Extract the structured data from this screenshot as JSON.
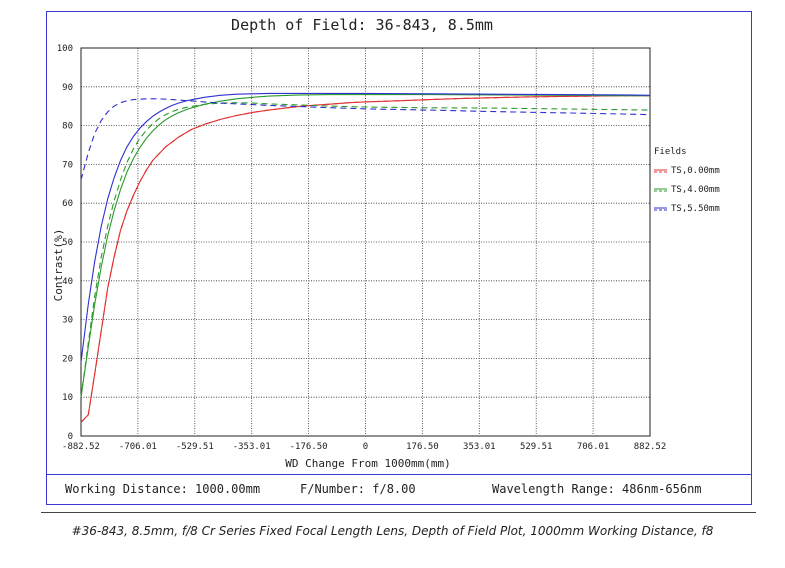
{
  "chart_data": {
    "type": "line",
    "title": "Depth of Field: 36-843, 8.5mm",
    "xlabel": "WD Change From 1000mm(mm)",
    "ylabel": "Contrast(%)",
    "xlim": [
      -882.52,
      882.52
    ],
    "ylim": [
      0,
      100
    ],
    "x_ticks": [
      "-882.52",
      "-706.01",
      "-529.51",
      "-353.01",
      "-176.50",
      "0",
      "176.50",
      "353.01",
      "529.51",
      "706.01",
      "882.52"
    ],
    "y_ticks": [
      "0",
      "10",
      "20",
      "30",
      "40",
      "50",
      "60",
      "70",
      "80",
      "90",
      "100"
    ],
    "grid": true,
    "legend_title": "Fields",
    "legend_position": "right",
    "series": [
      {
        "name": "TS,0.00mm",
        "color": "#e03030",
        "dash": "solid",
        "x": [
          -882.52,
          -860,
          -840,
          -820,
          -800,
          -780,
          -760,
          -740,
          -720,
          -700,
          -680,
          -660,
          -620,
          -580,
          -540,
          -500,
          -450,
          -400,
          -350,
          -300,
          -250,
          -200,
          -150,
          -100,
          -50,
          0,
          100,
          200,
          300,
          400,
          500,
          600,
          700,
          800,
          882.52
        ],
        "y": [
          3.5,
          5.5,
          16,
          27,
          38,
          46,
          53,
          58,
          62,
          65.5,
          68.5,
          71,
          74.5,
          77,
          79,
          80.3,
          81.6,
          82.6,
          83.4,
          84,
          84.5,
          85,
          85.3,
          85.6,
          85.9,
          86.1,
          86.4,
          86.7,
          87,
          87.2,
          87.4,
          87.5,
          87.6,
          87.7,
          87.7
        ]
      },
      {
        "name": "TS,0.00mm",
        "color": "#e03030",
        "dash": "dashed",
        "x": [
          -882.52,
          -860,
          -840,
          -820,
          -800,
          -780,
          -760,
          -740,
          -720,
          -700,
          -680,
          -660,
          -620,
          -580,
          -540,
          -500,
          -450,
          -400,
          -350,
          -300,
          -250,
          -200,
          -150,
          -100,
          -50,
          0,
          100,
          200,
          300,
          400,
          500,
          600,
          700,
          800,
          882.52
        ],
        "y": [
          3.5,
          5.5,
          16,
          27,
          38,
          46,
          53,
          58,
          62,
          65.5,
          68.5,
          71,
          74.5,
          77,
          79,
          80.3,
          81.6,
          82.6,
          83.4,
          84,
          84.5,
          85,
          85.3,
          85.6,
          85.9,
          86.1,
          86.4,
          86.7,
          87,
          87.2,
          87.4,
          87.5,
          87.6,
          87.7,
          87.7
        ]
      },
      {
        "name": "TS,4.00mm",
        "color": "#2a9a2a",
        "dash": "solid",
        "x": [
          -882.52,
          -860,
          -840,
          -820,
          -800,
          -780,
          -760,
          -740,
          -720,
          -700,
          -680,
          -660,
          -640,
          -620,
          -600,
          -580,
          -550,
          -500,
          -450,
          -400,
          -350,
          -300,
          -200,
          -100,
          0,
          200,
          400,
          600,
          800,
          882.52
        ],
        "y": [
          10,
          23,
          34,
          43.5,
          51.5,
          58,
          63.5,
          68,
          71.5,
          74.3,
          76.7,
          78.6,
          80.2,
          81.5,
          82.5,
          83.3,
          84.3,
          85.5,
          86.3,
          86.9,
          87.3,
          87.6,
          87.9,
          88,
          88,
          88,
          87.9,
          87.8,
          87.7,
          87.7
        ]
      },
      {
        "name": "TS,4.00mm",
        "color": "#2a9a2a",
        "dash": "dashed",
        "x": [
          -882.52,
          -860,
          -840,
          -820,
          -800,
          -780,
          -760,
          -740,
          -720,
          -700,
          -680,
          -660,
          -640,
          -620,
          -600,
          -580,
          -550,
          -500,
          -450,
          -400,
          -350,
          -300,
          -200,
          -100,
          0,
          200,
          400,
          600,
          800,
          882.52
        ],
        "y": [
          10,
          24,
          36,
          46,
          54,
          60.5,
          66,
          70.5,
          74,
          76.7,
          78.8,
          80.5,
          81.8,
          82.8,
          83.6,
          84.2,
          84.8,
          85.5,
          85.8,
          85.9,
          85.8,
          85.6,
          85.3,
          85,
          84.8,
          84.6,
          84.5,
          84.3,
          84.1,
          84
        ]
      },
      {
        "name": "TS,5.50mm",
        "color": "#3030d0",
        "dash": "solid",
        "x": [
          -882.52,
          -860,
          -840,
          -820,
          -800,
          -780,
          -760,
          -740,
          -720,
          -700,
          -680,
          -660,
          -640,
          -620,
          -600,
          -580,
          -550,
          -500,
          -450,
          -400,
          -350,
          -300,
          -200,
          -100,
          0,
          200,
          400,
          600,
          800,
          882.52
        ],
        "y": [
          19,
          34,
          45,
          54,
          61,
          66.5,
          71,
          74.5,
          77.2,
          79.3,
          81,
          82.4,
          83.5,
          84.4,
          85.2,
          85.8,
          86.5,
          87.3,
          87.8,
          88.1,
          88.2,
          88.3,
          88.3,
          88.3,
          88.3,
          88.2,
          88.1,
          88,
          87.9,
          87.8
        ]
      },
      {
        "name": "TS,5.50mm",
        "color": "#3030d0",
        "dash": "dashed",
        "x": [
          -882.52,
          -860,
          -840,
          -820,
          -800,
          -780,
          -760,
          -740,
          -720,
          -700,
          -680,
          -660,
          -640,
          -620,
          -600,
          -580,
          -550,
          -500,
          -450,
          -400,
          -350,
          -300,
          -200,
          -100,
          0,
          200,
          400,
          600,
          800,
          882.52
        ],
        "y": [
          66,
          73,
          78,
          81.3,
          83.5,
          85,
          85.9,
          86.4,
          86.7,
          86.8,
          86.9,
          86.9,
          86.9,
          86.8,
          86.7,
          86.6,
          86.4,
          86.1,
          85.8,
          85.6,
          85.4,
          85.2,
          84.9,
          84.6,
          84.3,
          84,
          83.6,
          83.3,
          83,
          82.8
        ]
      }
    ]
  },
  "footer": {
    "working_distance": "Working Distance: 1000.00mm",
    "f_number": "F/Number: f/8.00",
    "wavelength": "Wavelength Range: 486nm-656nm"
  },
  "caption": "#36-843, 8.5mm, f/8 Cr Series Fixed Focal Length Lens, Depth of Field Plot, 1000mm Working Distance, f8",
  "legend_entries": [
    "TS,0.00mm",
    "TS,4.00mm",
    "TS,5.50mm"
  ]
}
